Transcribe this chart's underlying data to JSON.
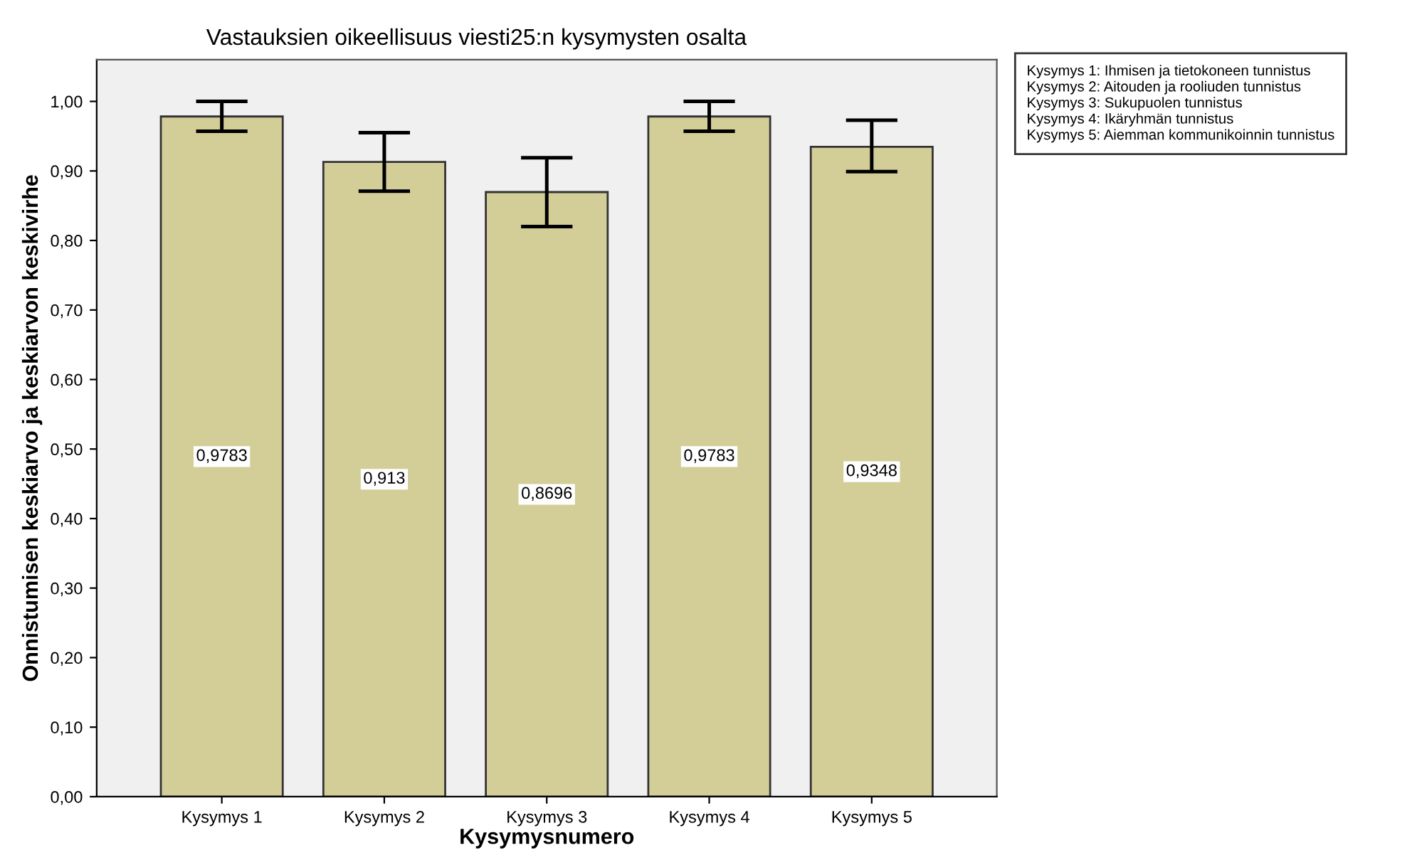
{
  "chart_data": {
    "type": "bar",
    "title": "Vastauksien oikeellisuus viesti25:n kysymysten osalta",
    "xlabel": "Kysymysnumero",
    "ylabel": "Onnistumisen keskiarvo ja keskiarvon keskivirhe",
    "categories": [
      "Kysymys 1",
      "Kysymys 2",
      "Kysymys 3",
      "Kysymys 4",
      "Kysymys 5"
    ],
    "values": [
      0.9783,
      0.913,
      0.8696,
      0.9783,
      0.9348
    ],
    "value_labels": [
      "0,9783",
      "0,913",
      "0,8696",
      "0,9783",
      "0,9348"
    ],
    "errors": [
      [
        0.957,
        1.0
      ],
      [
        0.871,
        0.955
      ],
      [
        0.82,
        0.919
      ],
      [
        0.957,
        1.0
      ],
      [
        0.899,
        0.973
      ]
    ],
    "color": "#d3ce97",
    "ylim": [
      0,
      1.06
    ],
    "yticks": [
      {
        "value": 0,
        "label": "0,00"
      },
      {
        "value": 0.1,
        "label": "0,10"
      },
      {
        "value": 0.2,
        "label": "0,20"
      },
      {
        "value": 0.3,
        "label": "0,30"
      },
      {
        "value": 0.4,
        "label": "0,40"
      },
      {
        "value": 0.5,
        "label": "0,50"
      },
      {
        "value": 0.6,
        "label": "0,60"
      },
      {
        "value": 0.7,
        "label": "0,70"
      },
      {
        "value": 0.8,
        "label": "0,80"
      },
      {
        "value": 0.9,
        "label": "0,90"
      },
      {
        "value": 1.0,
        "label": "1,00"
      }
    ],
    "grid": false,
    "legend": false,
    "annotations": [
      "Kysymys 1: Ihmisen ja tietokoneen tunnistus\nKysymys 2: Aitouden ja rooliuden tunnistus\nKysymys 3: Sukupuolen tunnistus\nKysymys 4: Ikäryhmän tunnistus\nKysymys 5: Aiemman kommunikoinnin tunnistus"
    ]
  }
}
